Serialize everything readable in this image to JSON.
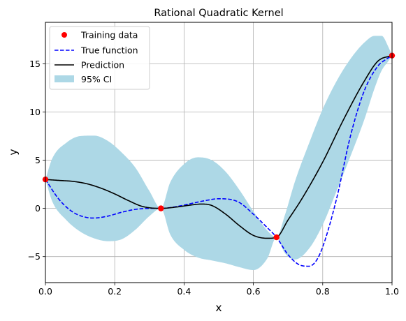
{
  "chart_data": {
    "type": "line",
    "title": "Rational Quadratic Kernel",
    "xlabel": "x",
    "ylabel": "y",
    "xlim": [
      0,
      1
    ],
    "ylim": [
      -7.7,
      19.3
    ],
    "xticks": [
      0.0,
      0.2,
      0.4,
      0.6,
      0.8,
      1.0
    ],
    "xtick_labels": [
      "0.0",
      "0.2",
      "0.4",
      "0.6",
      "0.8",
      "1.0"
    ],
    "yticks": [
      -5,
      0,
      5,
      10,
      15
    ],
    "ytick_labels": [
      "−5",
      "0",
      "5",
      "10",
      "15"
    ],
    "grid": true,
    "legend_position": "upper-left",
    "legend": [
      {
        "label": "Training data",
        "kind": "marker",
        "color": "#ff0000"
      },
      {
        "label": "True function",
        "kind": "dashed-line",
        "color": "#0000ff"
      },
      {
        "label": "Prediction",
        "kind": "line",
        "color": "#000000"
      },
      {
        "label": "95% CI",
        "kind": "patch",
        "color": "#add8e6"
      }
    ],
    "training_data": {
      "x": [
        0.0,
        0.3333,
        0.6667,
        1.0
      ],
      "y": [
        3.0,
        0.0,
        -3.0,
        15.85
      ]
    },
    "true_function": {
      "x": [
        0.0,
        0.04,
        0.08,
        0.12,
        0.14,
        0.18,
        0.22,
        0.26,
        0.3,
        0.3333,
        0.38,
        0.42,
        0.46,
        0.5,
        0.53,
        0.56,
        0.6,
        0.64,
        0.6667,
        0.7,
        0.73,
        0.76,
        0.78,
        0.8,
        0.84,
        0.88,
        0.92,
        0.96,
        0.98,
        1.0
      ],
      "y": [
        3.0,
        0.9,
        -0.4,
        -0.95,
        -1.0,
        -0.8,
        -0.4,
        -0.1,
        0.0,
        0.0,
        0.2,
        0.5,
        0.8,
        1.0,
        0.95,
        0.6,
        -0.6,
        -2.0,
        -3.0,
        -4.8,
        -5.8,
        -6.0,
        -5.5,
        -4.0,
        1.0,
        7.5,
        12.2,
        14.8,
        15.4,
        15.85
      ]
    },
    "prediction": {
      "x": [
        0.0,
        0.04,
        0.08,
        0.12,
        0.16,
        0.2,
        0.24,
        0.28,
        0.3333,
        0.38,
        0.42,
        0.45,
        0.48,
        0.52,
        0.56,
        0.6,
        0.64,
        0.6667,
        0.7,
        0.74,
        0.8,
        0.86,
        0.92,
        0.96,
        1.0
      ],
      "y": [
        3.0,
        2.9,
        2.8,
        2.55,
        2.1,
        1.5,
        0.8,
        0.2,
        0.0,
        0.15,
        0.35,
        0.45,
        0.3,
        -0.6,
        -1.8,
        -2.8,
        -3.1,
        -3.0,
        -1.2,
        1.0,
        4.8,
        9.2,
        13.2,
        15.3,
        15.85
      ]
    },
    "ci95": {
      "x": [
        0.0,
        0.02,
        0.06,
        0.1,
        0.14,
        0.18,
        0.22,
        0.26,
        0.3,
        0.3333,
        0.36,
        0.4,
        0.44,
        0.48,
        0.52,
        0.56,
        0.6,
        0.64,
        0.6667,
        0.69,
        0.72,
        0.76,
        0.8,
        0.84,
        0.88,
        0.92,
        0.95,
        0.97,
        0.99,
        1.0
      ],
      "upper": [
        3.0,
        5.2,
        6.8,
        7.5,
        7.55,
        7.0,
        5.8,
        4.2,
        1.8,
        0.0,
        2.7,
        4.6,
        5.3,
        5.0,
        3.8,
        1.9,
        -0.3,
        -2.3,
        -3.0,
        -0.8,
        2.8,
        6.7,
        10.3,
        13.2,
        15.5,
        17.2,
        17.9,
        17.9,
        16.7,
        15.85
      ],
      "lower": [
        3.0,
        0.7,
        -1.2,
        -2.4,
        -3.1,
        -3.4,
        -3.2,
        -2.2,
        -0.8,
        0.0,
        -2.7,
        -4.3,
        -5.1,
        -5.4,
        -5.7,
        -6.1,
        -6.4,
        -5.2,
        -3.0,
        -4.6,
        -5.3,
        -4.2,
        -1.7,
        1.8,
        5.4,
        9.2,
        12.5,
        14.3,
        15.3,
        15.85
      ]
    }
  }
}
